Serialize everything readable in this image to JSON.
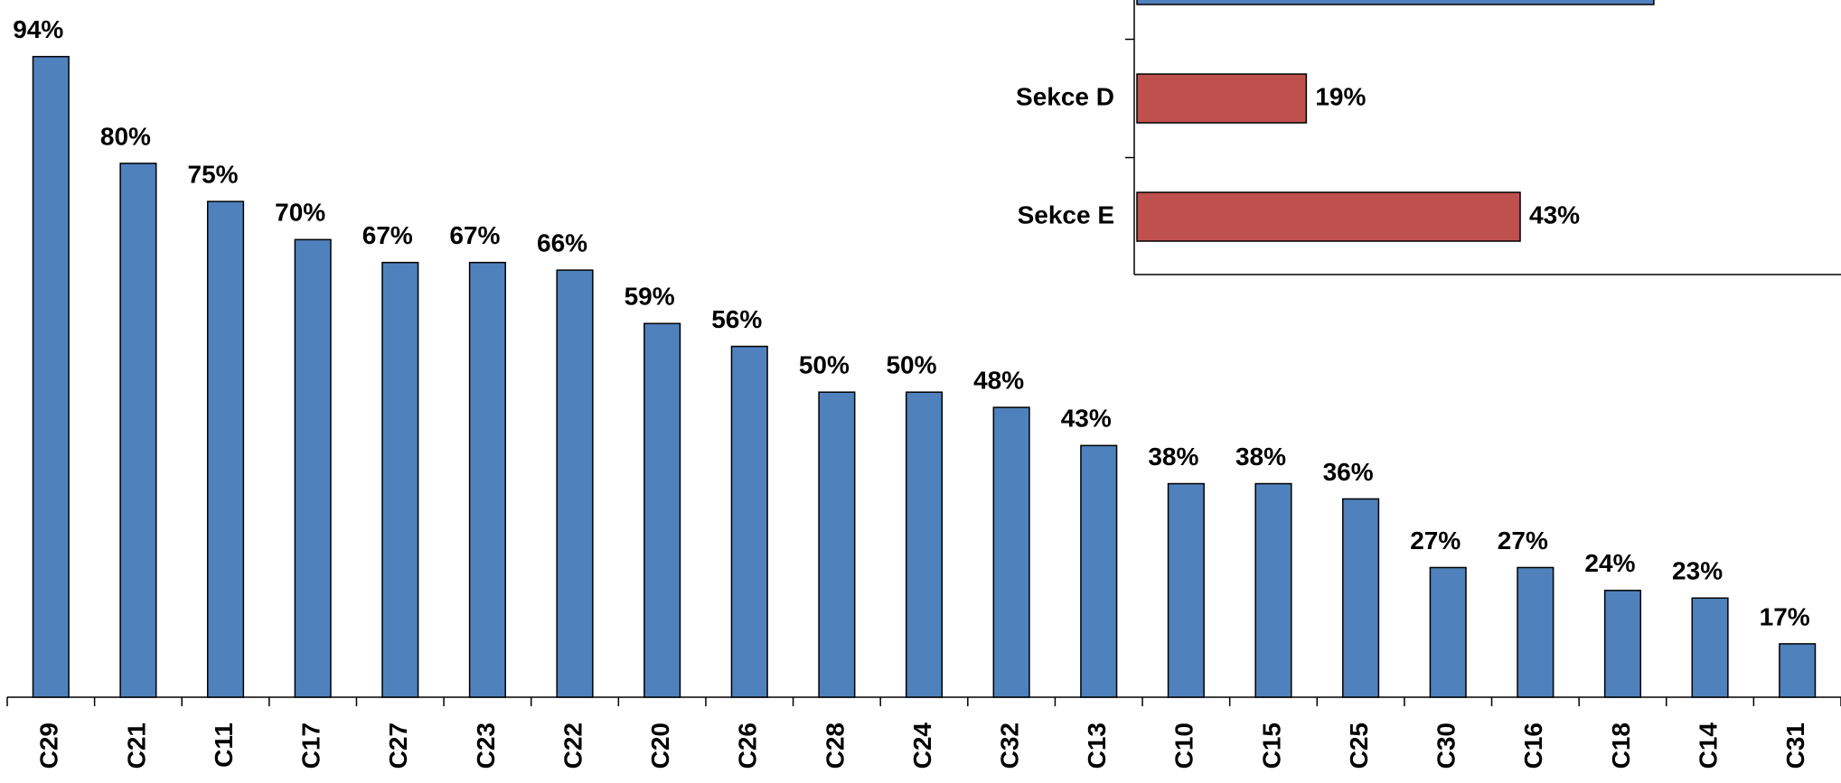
{
  "chart_data": [
    {
      "type": "bar",
      "categories": [
        "C29",
        "C21",
        "C11",
        "C17",
        "C27",
        "C23",
        "C22",
        "C20",
        "C26",
        "C28",
        "C24",
        "C32",
        "C13",
        "C10",
        "C15",
        "C25",
        "C30",
        "C16",
        "C18",
        "C14",
        "C31"
      ],
      "values": [
        94,
        80,
        75,
        70,
        67,
        67,
        66,
        59,
        56,
        50,
        50,
        48,
        43,
        38,
        38,
        36,
        27,
        27,
        24,
        23,
        17
      ],
      "value_labels": [
        "94%",
        "80%",
        "75%",
        "70%",
        "67%",
        "67%",
        "66%",
        "59%",
        "56%",
        "50%",
        "50%",
        "48%",
        "43%",
        "38%",
        "38%",
        "36%",
        "27%",
        "27%",
        "24%",
        "23%",
        "17%"
      ],
      "color": "#4f81bd",
      "ylim": [
        10,
        100
      ]
    },
    {
      "type": "hbar",
      "categories": [
        null,
        "Sekce D",
        "Sekce E"
      ],
      "values": [
        58,
        19,
        43
      ],
      "value_labels": [
        null,
        "19%",
        "43%"
      ],
      "colors": [
        "#4f81bd",
        "#c0504d",
        "#c0504d"
      ],
      "xlim": [
        0,
        79
      ]
    }
  ]
}
